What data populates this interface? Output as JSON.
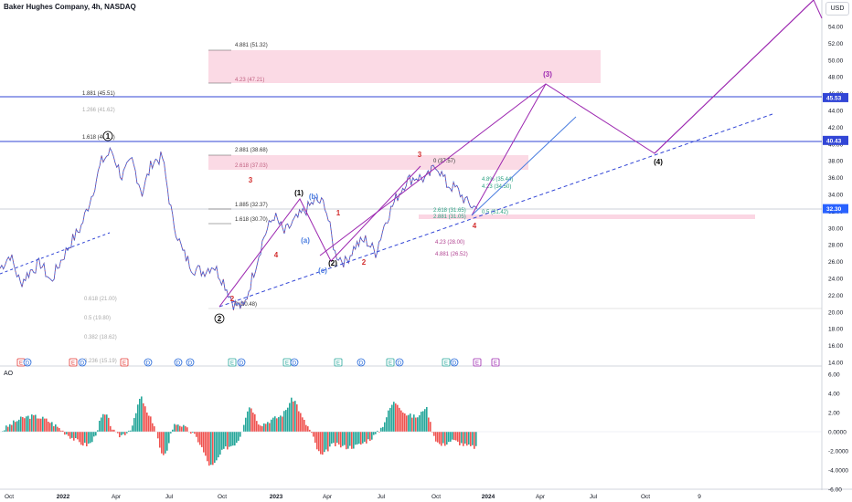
{
  "header": {
    "title": "Baker Hughes Company, 4h, NASDAQ",
    "currency": "USD"
  },
  "ao": {
    "label": "AO"
  },
  "chart_data": [
    {
      "type": "line",
      "title": "Baker Hughes Company, 4h, NASDAQ",
      "x_ticks": [
        "Oct",
        "2022",
        "Apr",
        "Jul",
        "Oct",
        "2023",
        "Apr",
        "Jul",
        "Oct",
        "2024",
        "Apr",
        "Jul",
        "Oct",
        "9"
      ],
      "y_ticks": [
        "54.00",
        "52.00",
        "50.00",
        "48.00",
        "46.00",
        "44.00",
        "42.00",
        "40.00",
        "38.00",
        "36.00",
        "34.00",
        "32.00",
        "30.00",
        "28.00",
        "26.00",
        "24.00",
        "22.00",
        "20.00",
        "18.00",
        "16.00",
        "14.00"
      ],
      "ylim": [
        13.5,
        55
      ],
      "price_tags": [
        {
          "value": 45.53,
          "label": "45.53",
          "color": "#3246d6"
        },
        {
          "value": 40.43,
          "label": "40.43",
          "color": "#3246d6"
        },
        {
          "value": 32.3,
          "label": "32.30",
          "color": "#2962ff"
        }
      ],
      "price_path": [
        [
          "Oct",
          25.2
        ],
        [
          "Oct",
          26.8
        ],
        [
          "Nov",
          23.4
        ],
        [
          "Nov",
          24.9
        ],
        [
          "Dec",
          25.8
        ],
        [
          "Dec",
          23.6
        ],
        [
          "2022",
          26.1
        ],
        [
          "2022",
          28.3
        ],
        [
          "Feb",
          30.2
        ],
        [
          "Feb",
          33.8
        ],
        [
          "Mar",
          37.9
        ],
        [
          "Mar",
          39.2
        ],
        [
          "Apr",
          36.1
        ],
        [
          "Apr",
          38.0
        ],
        [
          "May",
          34.2
        ],
        [
          "May",
          37.9
        ],
        [
          "Jun",
          38.4
        ],
        [
          "Jun",
          31.0
        ],
        [
          "Jul",
          27.1
        ],
        [
          "Jul",
          25.2
        ],
        [
          "Aug",
          24.8
        ],
        [
          "Aug",
          25.6
        ],
        [
          "Sep",
          23.7
        ],
        [
          "Sep",
          21.0
        ],
        [
          "Oct",
          20.48
        ],
        [
          "Oct",
          24.8
        ],
        [
          "Nov",
          29.0
        ],
        [
          "Nov",
          31.5
        ],
        [
          "Dec",
          29.4
        ],
        [
          "Dec",
          30.8
        ],
        [
          "2023",
          32.0
        ],
        [
          "Jan",
          33.2
        ],
        [
          "Feb",
          32.9
        ],
        [
          "Mar",
          27.0
        ],
        [
          "Mar",
          25.9
        ],
        [
          "Apr",
          27.9
        ],
        [
          "Apr",
          28.6
        ],
        [
          "May",
          27.1
        ],
        [
          "Jun",
          30.9
        ],
        [
          "Jun",
          33.5
        ],
        [
          "Jul",
          35.6
        ],
        [
          "Jul",
          36.1
        ],
        [
          "Aug",
          35.8
        ],
        [
          "Sep",
          37.57
        ],
        [
          "Sep",
          35.2
        ],
        [
          "Oct",
          34.6
        ],
        [
          "Nov",
          33.0
        ],
        [
          "Nov",
          32.3
        ]
      ],
      "wave_labels": [
        "(1)",
        "(b)",
        "(a)",
        "(c)",
        "(2)",
        "(3)",
        "(4)",
        "(4)",
        "1",
        "2",
        "3",
        "4",
        "4",
        "2",
        "3",
        "(2)",
        "(1)"
      ],
      "fib_levels": [
        {
          "label": "4.881 (51.32)"
        },
        {
          "label": "4.23 (47.21)"
        },
        {
          "label": "1.881 (45.51)"
        },
        {
          "label": "1.266 (41.62)"
        },
        {
          "label": "1.618 (40.42)"
        },
        {
          "label": "2.881 (38.68)"
        },
        {
          "label": "2.618 (37.03)"
        },
        {
          "label": "0 (37.57)"
        },
        {
          "label": "1.885 (32.37)"
        },
        {
          "label": "1.618 (30.70)"
        },
        {
          "label": "0.618 (21.00)"
        },
        {
          "label": "0.5 (19.80)"
        },
        {
          "label": "0.382 (18.62)"
        },
        {
          "label": "0.236 (15.19)"
        },
        {
          "label": "0 (20.48)"
        },
        {
          "label": "2.618 (31.65)"
        },
        {
          "label": "2.881 (31.05)"
        },
        {
          "label": "4.23 (28.00)"
        },
        {
          "label": "4.881 (26.52)"
        },
        {
          "label": "4.8% (35.44)"
        },
        {
          "label": "4.23 (34.50)"
        },
        {
          "label": "0.5 (31.42)"
        }
      ],
      "event_markers": [
        "E",
        "D",
        "E",
        "D",
        "E",
        "D",
        "D",
        "D",
        "E",
        "D",
        "E",
        "D",
        "E",
        "D",
        "E",
        "D",
        "E",
        "D",
        "E",
        "E"
      ]
    },
    {
      "type": "bar",
      "title": "AO",
      "y_ticks": [
        "6.00",
        "4.00",
        "2.00",
        "0.0000",
        "-2.0000",
        "-4.0000",
        "-6.00"
      ],
      "ylim": [
        -6.5,
        6.5
      ],
      "colors": {
        "up": "#26a69a",
        "down": "#ef5350"
      }
    }
  ]
}
